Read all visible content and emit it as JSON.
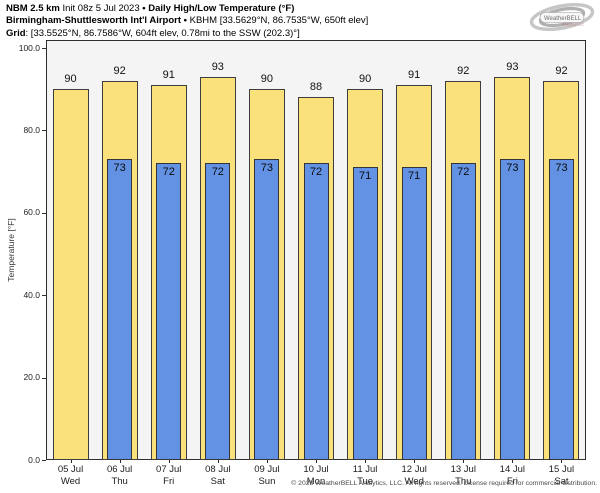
{
  "header": {
    "model": "NBM 2.5 km",
    "init": "Init 08z 5 Jul 2023",
    "bullet": "•",
    "product": "Daily High/Low Temperature (°F)",
    "station_name": "Birmingham-Shuttlesworth Int'l Airport",
    "station_info": "KBHM [33.5629°N, 86.7535°W, 650ft elev]",
    "grid_label": "Grid",
    "grid_info": ": [33.5525°N, 86.7586°W, 604ft elev, 0.78mi to the SSW (202.3)°]"
  },
  "logo": {
    "brand_left": "Weather",
    "brand_right": "BELL",
    "tagline": "Analytics LLC"
  },
  "chart_data": {
    "type": "bar",
    "title": "Daily High/Low Temperature (°F)",
    "ylabel": "Temperature [°F]",
    "ylim": [
      0,
      100
    ],
    "yticks": [
      0,
      20,
      40,
      60,
      80,
      100
    ],
    "ytick_labels": [
      "0.0",
      "20.0",
      "40.0",
      "60.0",
      "80.0",
      "100.0"
    ],
    "grid": false,
    "legend_position": "none",
    "plot_background": "#f4f4f4",
    "categories": [
      "05 Jul",
      "06 Jul",
      "07 Jul",
      "08 Jul",
      "09 Jul",
      "10 Jul",
      "11 Jul",
      "12 Jul",
      "13 Jul",
      "14 Jul",
      "15 Jul"
    ],
    "day_labels": [
      "Wed",
      "Thu",
      "Fri",
      "Sat",
      "Sun",
      "Mon",
      "Tue",
      "Wed",
      "Thu",
      "Fri",
      "Sat"
    ],
    "series": [
      {
        "name": "Daily High",
        "color": "#FBE17B",
        "values": [
          90,
          92,
          91,
          93,
          90,
          88,
          90,
          91,
          92,
          93,
          92
        ]
      },
      {
        "name": "Daily Low",
        "color": "#6392E4",
        "values": [
          null,
          73,
          72,
          72,
          73,
          72,
          71,
          71,
          72,
          73,
          73
        ]
      }
    ]
  },
  "footer": "© 2023 WeatherBELL Analytics, LLC. All rights reserved. License required for commercial distribution."
}
